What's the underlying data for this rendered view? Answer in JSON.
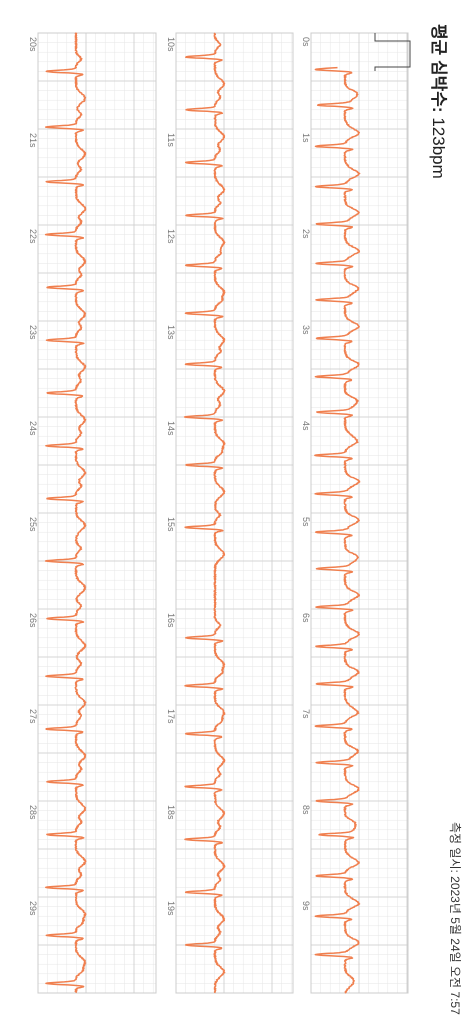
{
  "header": {
    "avg_prefix": "평균 심박수:",
    "avg_value": "123bpm",
    "measured": "측정 일시: 2023년 5월 24일 오전 7:57"
  },
  "colors": {
    "trace": "#f07f4e",
    "grid_minor": "#e6e6e6",
    "grid_major": "#cccccc",
    "calibration": "#444444"
  },
  "chart_data": [
    {
      "type": "line",
      "title": "",
      "x_unit": "s",
      "xlim": [
        0,
        10
      ],
      "tick_labels": [
        "0s",
        "1s",
        "2s",
        "3s",
        "4s",
        "5s",
        "6s",
        "7s",
        "8s",
        "9s"
      ],
      "r_peaks_s": [
        0.38,
        0.75,
        1.18,
        1.6,
        1.99,
        2.4,
        2.78,
        3.18,
        3.58,
        3.95,
        4.4,
        4.8,
        5.2,
        5.58,
        5.98,
        6.39,
        6.78,
        7.22,
        7.6,
        8.0,
        8.35,
        8.78,
        9.2,
        9.6
      ],
      "grid": true
    },
    {
      "type": "line",
      "title": "",
      "x_unit": "s",
      "xlim": [
        10,
        20
      ],
      "tick_labels": [
        "10s",
        "11s",
        "12s",
        "13s",
        "14s",
        "15s",
        "16s",
        "17s",
        "18s",
        "19s"
      ],
      "r_peaks_s": [
        10.25,
        10.8,
        11.35,
        11.9,
        12.42,
        12.92,
        13.45,
        14.0,
        14.5,
        15.15,
        16.3,
        16.8,
        17.3,
        17.85,
        18.4,
        18.95,
        19.5
      ],
      "grid": true
    },
    {
      "type": "line",
      "title": "",
      "x_unit": "s",
      "xlim": [
        20,
        30
      ],
      "tick_labels": [
        "20s",
        "21s",
        "22s",
        "23s",
        "24s",
        "25s",
        "26s",
        "27s",
        "28s",
        "29s"
      ],
      "r_peaks_s": [
        20.4,
        20.98,
        21.55,
        22.1,
        22.65,
        23.2,
        23.75,
        24.3,
        24.85,
        25.5,
        26.1,
        26.7,
        27.25,
        27.8,
        28.35,
        28.9,
        29.4,
        29.9
      ],
      "grid": true
    }
  ]
}
